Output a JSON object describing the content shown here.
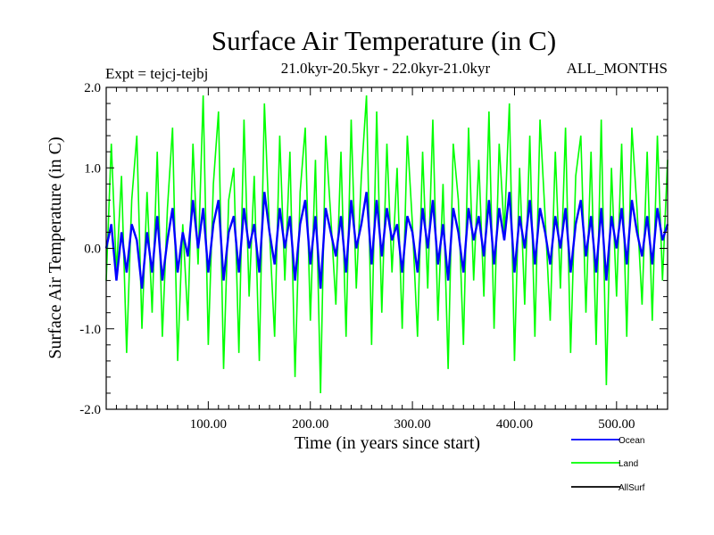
{
  "chart_data": {
    "type": "line",
    "title": "Surface Air Temperature (in C)",
    "subtitle": "21.0kyr-20.5kyr - 22.0kyr-21.0kyr",
    "expt_label": "Expt = tejcj-tejbj",
    "months_label": "ALL_MONTHS",
    "xlabel": "Time (in years since start)",
    "ylabel": "Surface Air Temperature (in C)",
    "xlim": [
      0,
      550
    ],
    "ylim": [
      -2.0,
      2.0
    ],
    "x_ticks": [
      100,
      200,
      300,
      400,
      500
    ],
    "x_tick_labels": [
      "100.00",
      "200.00",
      "300.00",
      "400.00",
      "500.00"
    ],
    "y_ticks": [
      -2.0,
      -1.0,
      0.0,
      1.0,
      2.0
    ],
    "y_tick_labels": [
      "-2.0",
      "-1.0",
      "0.0",
      "1.0",
      "2.0"
    ],
    "series": [
      {
        "name": "Land",
        "color": "#00ff00",
        "x_start": 0,
        "x_step": 5,
        "values": [
          -0.4,
          1.3,
          -0.3,
          0.9,
          -1.3,
          0.6,
          1.4,
          -1.0,
          0.7,
          -0.8,
          1.2,
          -1.1,
          0.5,
          1.5,
          -1.4,
          0.3,
          -0.9,
          1.3,
          -0.2,
          1.9,
          -1.2,
          0.8,
          1.7,
          -1.5,
          0.6,
          1.0,
          -1.3,
          1.6,
          -0.6,
          0.9,
          -1.4,
          1.8,
          0.2,
          -1.1,
          1.4,
          -0.4,
          1.2,
          -1.6,
          0.7,
          1.5,
          -0.9,
          1.1,
          -1.8,
          1.4,
          0.4,
          -0.7,
          1.2,
          -1.1,
          1.6,
          -0.5,
          0.9,
          1.9,
          -1.2,
          1.7,
          -0.8,
          1.3,
          -0.3,
          1.0,
          -1.0,
          1.4,
          0.3,
          -1.1,
          1.2,
          -0.5,
          1.6,
          -0.9,
          0.8,
          -1.5,
          1.3,
          0.6,
          -1.2,
          1.5,
          -0.4,
          1.1,
          -0.6,
          1.7,
          -1.0,
          1.3,
          0.2,
          1.8,
          -1.4,
          1.0,
          -0.7,
          1.4,
          -1.1,
          1.6,
          0.4,
          -0.9,
          1.2,
          -0.5,
          1.5,
          -1.3,
          0.9,
          1.4,
          -0.8,
          1.2,
          -1.2,
          1.6,
          -1.7,
          1.0,
          -0.6,
          1.3,
          -1.1,
          1.5,
          0.5,
          -0.7,
          1.2,
          -0.9,
          1.4,
          -0.4,
          1.1
        ]
      },
      {
        "name": "Ocean",
        "color": "#0000ff",
        "x_start": 0,
        "x_step": 5,
        "values": [
          0.0,
          0.3,
          -0.4,
          0.2,
          -0.3,
          0.3,
          0.1,
          -0.5,
          0.2,
          -0.3,
          0.4,
          -0.4,
          0.1,
          0.5,
          -0.3,
          0.2,
          -0.1,
          0.6,
          0.0,
          0.5,
          -0.3,
          0.3,
          0.6,
          -0.4,
          0.2,
          0.4,
          -0.3,
          0.5,
          0.0,
          0.3,
          -0.3,
          0.7,
          0.2,
          -0.2,
          0.5,
          0.0,
          0.4,
          -0.4,
          0.3,
          0.6,
          -0.2,
          0.4,
          -0.5,
          0.5,
          0.2,
          -0.1,
          0.4,
          -0.3,
          0.6,
          0.0,
          0.3,
          0.7,
          -0.2,
          0.6,
          -0.1,
          0.5,
          0.1,
          0.3,
          -0.3,
          0.4,
          0.2,
          -0.3,
          0.5,
          0.0,
          0.6,
          -0.2,
          0.3,
          -0.4,
          0.5,
          0.2,
          -0.3,
          0.5,
          0.1,
          0.4,
          -0.1,
          0.6,
          -0.2,
          0.5,
          0.1,
          0.7,
          -0.3,
          0.4,
          0.0,
          0.6,
          -0.2,
          0.5,
          0.2,
          -0.2,
          0.4,
          0.0,
          0.5,
          -0.3,
          0.3,
          0.6,
          -0.1,
          0.4,
          -0.3,
          0.5,
          -0.4,
          0.4,
          0.0,
          0.5,
          -0.2,
          0.6,
          0.2,
          -0.1,
          0.4,
          -0.2,
          0.5,
          0.1,
          0.3
        ]
      }
    ],
    "legend": [
      {
        "name": "Ocean",
        "color": "#0000ff"
      },
      {
        "name": "Land",
        "color": "#00ff00"
      },
      {
        "name": "AllSurf",
        "color": "#000000"
      }
    ],
    "legend_position": "bottom-right"
  }
}
